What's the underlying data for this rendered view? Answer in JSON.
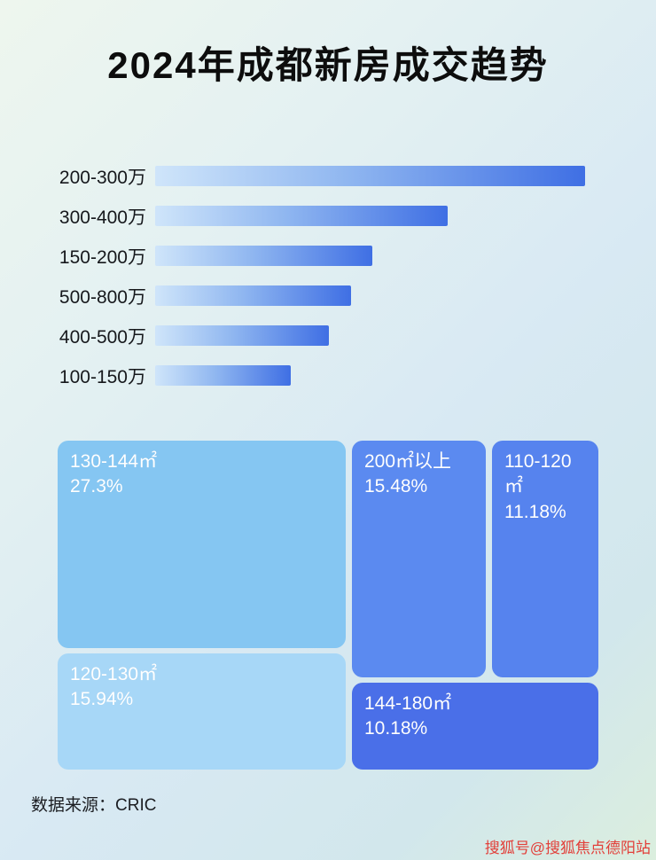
{
  "page": {
    "title": "2024年成都新房成交趋势",
    "source_note": "数据来源：CRIC",
    "watermark": "搜狐号@搜狐焦点德阳站"
  },
  "chart_data": [
    {
      "type": "bar",
      "orientation": "horizontal",
      "title": "2024年成都新房成交趋势",
      "categories": [
        "200-300万",
        "300-400万",
        "150-200万",
        "500-800万",
        "400-500万",
        "100-150万"
      ],
      "values_relative_pct_of_max": [
        100,
        68,
        50.5,
        45.5,
        40.5,
        31.5
      ],
      "value_labels_shown": false,
      "legend": "none",
      "grid": "off",
      "bar_gradient": [
        "#cfe5fa",
        "#3f6fe4"
      ]
    },
    {
      "type": "treemap",
      "unit": "%",
      "items": [
        {
          "label": "130-144㎡",
          "value": 27.3,
          "display": "27.3%",
          "color": "#85c6f2"
        },
        {
          "label": "120-130㎡",
          "value": 15.94,
          "display": "15.94%",
          "color": "#a7d7f7"
        },
        {
          "label": "200㎡以上",
          "value": 15.48,
          "display": "15.48%",
          "color": "#5b8af0"
        },
        {
          "label": "110-120㎡",
          "value": 11.18,
          "display": "11.18%",
          "color": "#5683ee"
        },
        {
          "label": "144-180㎡",
          "value": 10.18,
          "display": "10.18%",
          "color": "#4a6fe8"
        }
      ]
    }
  ]
}
